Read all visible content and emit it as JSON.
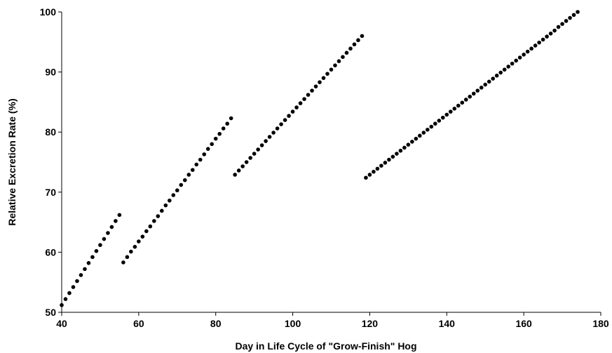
{
  "chart_data": {
    "type": "scatter",
    "title": "",
    "xlabel": "Day in Life Cycle of \"Grow-Finish\" Hog",
    "ylabel": "Relative Excretion Rate (%)",
    "xlim": [
      40,
      180
    ],
    "ylim": [
      50,
      100
    ],
    "xticks": [
      "40",
      "60",
      "80",
      "100",
      "120",
      "140",
      "160",
      "180"
    ],
    "yticks": [
      "50",
      "60",
      "70",
      "80",
      "90",
      "100"
    ],
    "grid": false,
    "legend": "none",
    "point_color": "#000000",
    "series": [
      {
        "x": [
          40,
          41,
          42,
          43,
          44,
          45,
          46,
          47,
          48,
          49,
          50,
          51,
          52,
          53,
          54,
          55
        ],
        "y": [
          51.2,
          52.2,
          53.2,
          54.2,
          55.2,
          56.2,
          57.2,
          58.2,
          59.2,
          60.2,
          61.2,
          62.2,
          63.2,
          64.2,
          65.2,
          66.2
        ]
      },
      {
        "x": [
          56,
          57,
          58,
          59,
          60,
          61,
          62,
          63,
          64,
          65,
          66,
          67,
          68,
          69,
          70,
          71,
          72,
          73,
          74,
          75,
          76,
          77,
          78,
          79,
          80,
          81,
          82,
          83,
          84
        ],
        "y": [
          58.3,
          59.2,
          60.1,
          60.9,
          61.8,
          62.6,
          63.5,
          64.3,
          65.2,
          66.0,
          66.9,
          67.8,
          68.6,
          69.5,
          70.3,
          71.2,
          72.0,
          72.9,
          73.7,
          74.6,
          75.4,
          76.3,
          77.2,
          78.0,
          78.9,
          79.7,
          80.6,
          81.4,
          82.3
        ]
      },
      {
        "x": [
          85,
          86,
          87,
          88,
          89,
          90,
          91,
          92,
          93,
          94,
          95,
          96,
          97,
          98,
          99,
          100,
          101,
          102,
          103,
          104,
          105,
          106,
          107,
          108,
          109,
          110,
          111,
          112,
          113,
          114,
          115,
          116,
          117,
          118
        ],
        "y": [
          72.9,
          73.6,
          74.3,
          75.0,
          75.7,
          76.4,
          77.1,
          77.8,
          78.5,
          79.2,
          79.9,
          80.6,
          81.3,
          82.0,
          82.7,
          83.4,
          84.1,
          84.8,
          85.5,
          86.2,
          86.9,
          87.6,
          88.3,
          89.0,
          89.7,
          90.4,
          91.1,
          91.8,
          92.5,
          93.2,
          93.9,
          94.6,
          95.3,
          96.0
        ]
      },
      {
        "x": [
          119,
          120,
          121,
          122,
          123,
          124,
          125,
          126,
          127,
          128,
          129,
          130,
          131,
          132,
          133,
          134,
          135,
          136,
          137,
          138,
          139,
          140,
          141,
          142,
          143,
          144,
          145,
          146,
          147,
          148,
          149,
          150,
          151,
          152,
          153,
          154,
          155,
          156,
          157,
          158,
          159,
          160,
          161,
          162,
          163,
          164,
          165,
          166,
          167,
          168,
          169,
          170,
          171,
          172,
          173,
          174
        ],
        "y": [
          72.4,
          72.9,
          73.4,
          73.9,
          74.4,
          74.9,
          75.4,
          75.9,
          76.4,
          76.9,
          77.4,
          77.9,
          78.4,
          78.9,
          79.4,
          79.9,
          80.4,
          80.9,
          81.4,
          81.9,
          82.4,
          82.9,
          83.4,
          83.9,
          84.4,
          84.9,
          85.4,
          85.9,
          86.4,
          86.9,
          87.4,
          87.9,
          88.4,
          88.9,
          89.4,
          89.9,
          90.4,
          90.9,
          91.4,
          91.9,
          92.4,
          92.9,
          93.4,
          93.9,
          94.4,
          94.9,
          95.4,
          95.9,
          96.4,
          96.9,
          97.5,
          98.0,
          98.5,
          99.0,
          99.5,
          100.0
        ]
      }
    ]
  }
}
